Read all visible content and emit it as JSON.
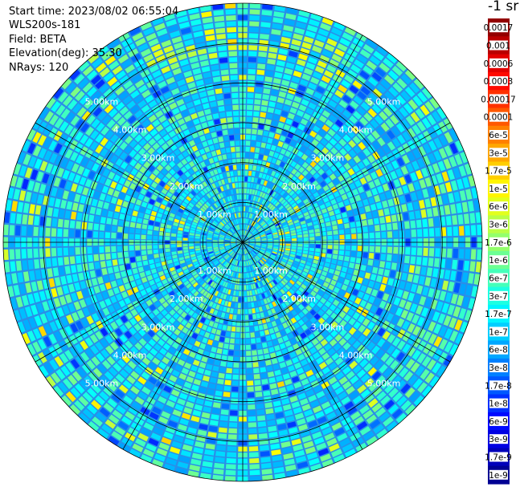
{
  "info": {
    "start_time": "Start time: 2023/08/02 06:55:04",
    "device": "WLS200s-181",
    "field": "Field: BETA",
    "elevation": "Elevation(deg): 35.30",
    "nrays": "NRays: 120"
  },
  "colorbar": {
    "unit": "-1 sr",
    "ticks": [
      "0.0017",
      "0.001",
      "0.0006",
      "0.0003",
      "0.00017",
      "0.0001",
      "6e-5",
      "3e-5",
      "1.7e-5",
      "1e-5",
      "6e-6",
      "3e-6",
      "1.7e-6",
      "1e-6",
      "6e-7",
      "3e-7",
      "1.7e-7",
      "1e-7",
      "6e-8",
      "3e-8",
      "1.7e-8",
      "1e-8",
      "6e-9",
      "3e-9",
      "1.7e-9",
      "1e-9"
    ]
  },
  "chart_data": {
    "type": "heatmap",
    "projection": "polar PPI",
    "field": "BETA",
    "n_rays": 120,
    "range_rings_km": [
      1,
      2,
      3,
      4,
      5,
      6
    ],
    "ring_labels": [
      "1.00km",
      "2.00km",
      "3.00km",
      "4.00km",
      "5.00km"
    ],
    "colormap": "jet",
    "scale": "log",
    "vmin": 1e-09,
    "vmax": 0.0017
  }
}
